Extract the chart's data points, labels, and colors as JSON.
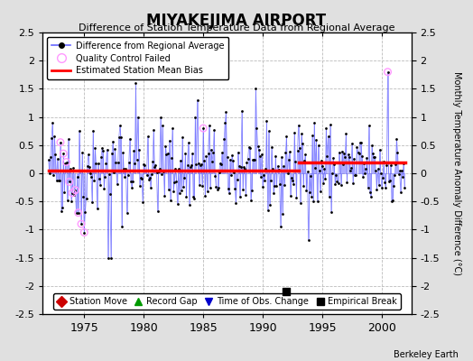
{
  "title": "MIYAKEJIMA AIRPORT",
  "subtitle": "Difference of Station Temperature Data from Regional Average",
  "ylabel": "Monthly Temperature Anomaly Difference (°C)",
  "ylim": [
    -2.5,
    2.5
  ],
  "yticks": [
    -2.5,
    -2,
    -1.5,
    -1,
    -0.5,
    0,
    0.5,
    1,
    1.5,
    2,
    2.5
  ],
  "xlim": [
    1971.5,
    2002.5
  ],
  "xticks": [
    1975,
    1980,
    1985,
    1990,
    1995,
    2000
  ],
  "bias_line_early": 0.05,
  "bias_line_late": 0.2,
  "bias_split_year": 1993.0,
  "background_color": "#e0e0e0",
  "plot_bg_color": "#ffffff",
  "line_color": "#6666ff",
  "dot_color": "#000000",
  "bias_color": "#ff0000",
  "qc_color": "#ff99ff",
  "empirical_break_x": 1992.0,
  "empirical_break_y": -2.1,
  "seed": 42
}
